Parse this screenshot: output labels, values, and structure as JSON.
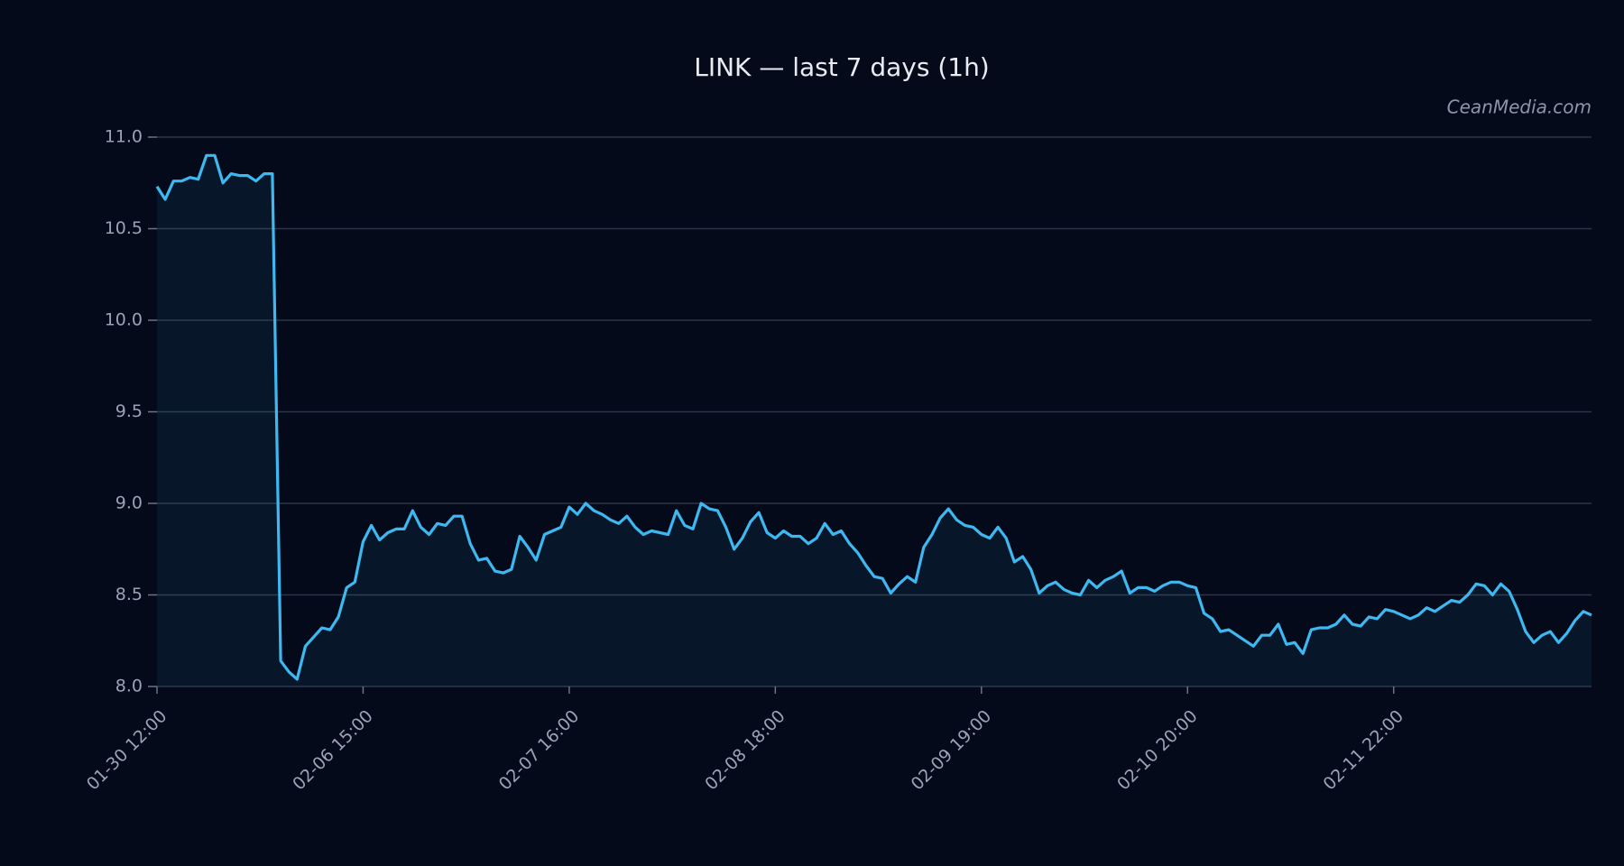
{
  "chart_data": {
    "type": "line",
    "title": "LINK — last 7 days (1h)",
    "watermark": "CeanMedia.com",
    "categories": [
      "01-30 12:00",
      null,
      null,
      null,
      null,
      null,
      null,
      null,
      null,
      null,
      null,
      null,
      null,
      null,
      null,
      null,
      null,
      null,
      null,
      null,
      null,
      null,
      null,
      null,
      null,
      "02-06 15:00",
      null,
      null,
      null,
      null,
      null,
      null,
      null,
      null,
      null,
      null,
      null,
      null,
      null,
      null,
      null,
      null,
      null,
      null,
      null,
      null,
      null,
      null,
      null,
      null,
      "02-07 16:00",
      null,
      null,
      null,
      null,
      null,
      null,
      null,
      null,
      null,
      null,
      null,
      null,
      null,
      null,
      null,
      null,
      null,
      null,
      null,
      null,
      null,
      null,
      null,
      null,
      "02-08 18:00",
      null,
      null,
      null,
      null,
      null,
      null,
      null,
      null,
      null,
      null,
      null,
      null,
      null,
      null,
      null,
      null,
      null,
      null,
      null,
      null,
      null,
      null,
      null,
      null,
      "02-09 19:00",
      null,
      null,
      null,
      null,
      null,
      null,
      null,
      null,
      null,
      null,
      null,
      null,
      null,
      null,
      null,
      null,
      null,
      null,
      null,
      null,
      null,
      null,
      null,
      null,
      "02-10 20:00",
      null,
      null,
      null,
      null,
      null,
      null,
      null,
      null,
      null,
      null,
      null,
      null,
      null,
      null,
      null,
      null,
      null,
      null,
      null,
      null,
      null,
      null,
      null,
      null,
      "02-11 22:00",
      null,
      null,
      null,
      null,
      null,
      null,
      null,
      null,
      null,
      null,
      null,
      null,
      null,
      null,
      null,
      null,
      null,
      null,
      null,
      null,
      null,
      null,
      null,
      null
    ],
    "series": [
      {
        "color": "#3db8f0",
        "values": [
          10.73,
          10.66,
          10.76,
          10.76,
          10.78,
          10.77,
          10.9,
          10.9,
          10.75,
          10.8,
          10.79,
          10.79,
          10.76,
          10.8,
          10.8,
          8.14,
          8.08,
          8.04,
          8.22,
          8.27,
          8.32,
          8.31,
          8.38,
          8.54,
          8.57,
          8.79,
          8.88,
          8.8,
          8.84,
          8.86,
          8.86,
          8.96,
          8.87,
          8.83,
          8.89,
          8.88,
          8.93,
          8.93,
          8.78,
          8.69,
          8.7,
          8.63,
          8.62,
          8.64,
          8.82,
          8.76,
          8.69,
          8.83,
          8.85,
          8.87,
          8.98,
          8.94,
          9.0,
          8.96,
          8.94,
          8.91,
          8.89,
          8.93,
          8.87,
          8.83,
          8.85,
          8.84,
          8.83,
          8.96,
          8.88,
          8.86,
          9.0,
          8.97,
          8.96,
          8.87,
          8.75,
          8.81,
          8.9,
          8.95,
          8.84,
          8.81,
          8.85,
          8.82,
          8.82,
          8.78,
          8.81,
          8.89,
          8.83,
          8.85,
          8.78,
          8.73,
          8.66,
          8.6,
          8.59,
          8.51,
          8.56,
          8.6,
          8.57,
          8.76,
          8.83,
          8.92,
          8.97,
          8.91,
          8.88,
          8.87,
          8.83,
          8.81,
          8.87,
          8.81,
          8.68,
          8.71,
          8.64,
          8.51,
          8.55,
          8.57,
          8.53,
          8.51,
          8.5,
          8.58,
          8.54,
          8.58,
          8.6,
          8.63,
          8.51,
          8.54,
          8.54,
          8.52,
          8.55,
          8.57,
          8.57,
          8.55,
          8.54,
          8.4,
          8.37,
          8.3,
          8.31,
          8.28,
          8.25,
          8.22,
          8.28,
          8.28,
          8.34,
          8.23,
          8.24,
          8.18,
          8.31,
          8.32,
          8.32,
          8.34,
          8.39,
          8.34,
          8.33,
          8.38,
          8.37,
          8.42,
          8.41,
          8.39,
          8.37,
          8.39,
          8.43,
          8.41,
          8.44,
          8.47,
          8.46,
          8.5,
          8.56,
          8.55,
          8.5,
          8.56,
          8.52,
          8.42,
          8.3,
          8.24,
          8.28,
          8.3,
          8.24,
          8.29,
          8.36,
          8.41,
          8.39
        ]
      }
    ],
    "ylim": [
      8,
      11
    ],
    "yticks": [
      {
        "value": 8,
        "label": "8.0"
      },
      8.5,
      {
        "value": 9,
        "label": "9.0"
      },
      9.5,
      {
        "value": 10,
        "label": "10.0"
      },
      10.5,
      {
        "value": 11,
        "label": "11.0"
      }
    ],
    "grid": true
  }
}
